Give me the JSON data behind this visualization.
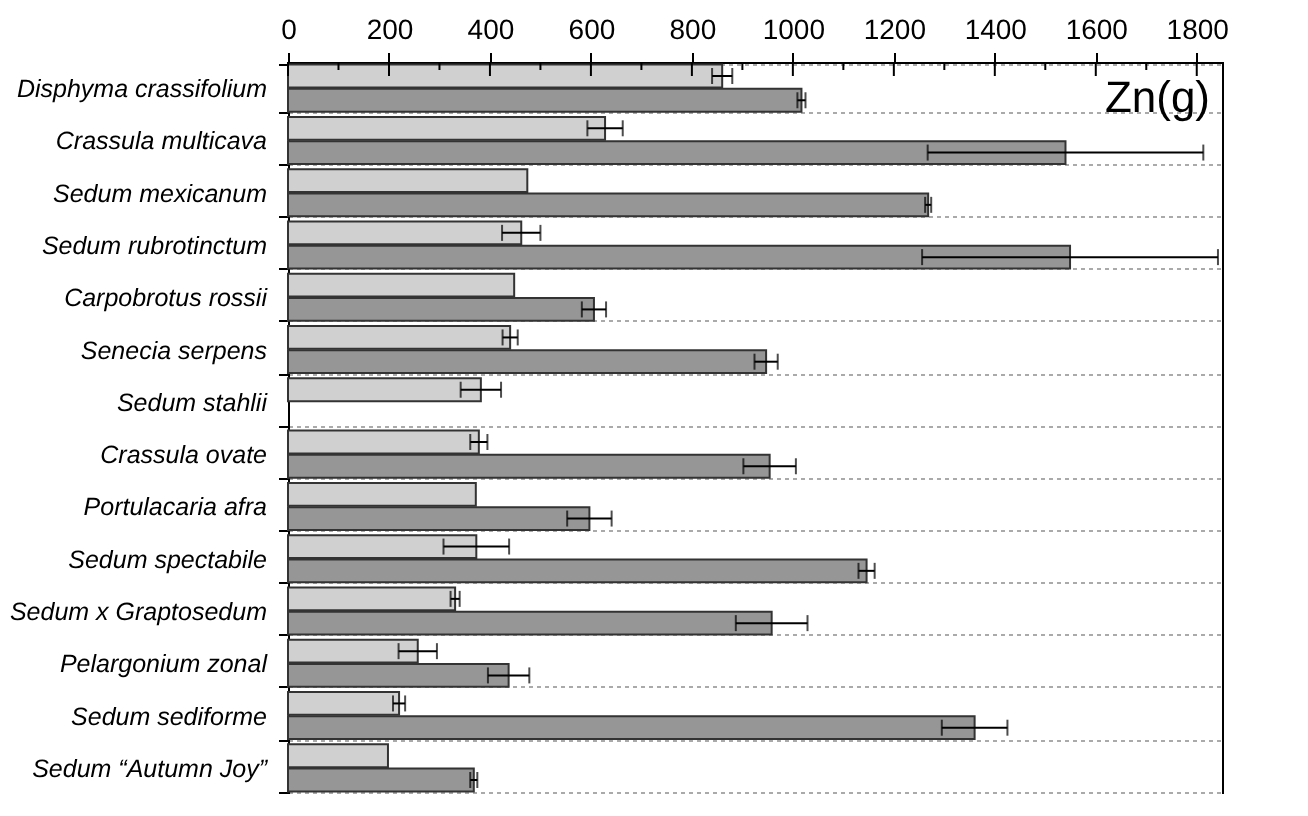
{
  "chart_data": {
    "type": "bar",
    "orientation": "horizontal",
    "categories": [
      "Disphyma crassifolium",
      "Crassula multicava",
      "Sedum mexicanum",
      "Sedum rubrotinctum",
      "Carpobrotus rossii",
      "Senecia serpens",
      "Sedum stahlii",
      "Crassula ovate",
      "Portulacaria afra",
      "Sedum spectabile",
      "Sedum x Graptosedum",
      "Pelargonium zonal",
      "Sedum sediforme",
      "Sedum “Autumn Joy”"
    ],
    "series": [
      {
        "color": "#d0d0d0",
        "values": [
          860,
          628,
          474,
          462,
          448,
          440,
          382,
          378,
          372,
          373,
          331,
          257,
          220,
          198
        ],
        "errors": [
          20,
          35,
          null,
          38,
          null,
          15,
          40,
          17,
          null,
          65,
          9,
          38,
          12,
          null
        ]
      },
      {
        "color": "#969696",
        "values": [
          1017,
          1540,
          1268,
          1549,
          606,
          947,
          null,
          954,
          597,
          1146,
          958,
          437,
          1360,
          368
        ],
        "errors": [
          8,
          273,
          6,
          293,
          24,
          23,
          null,
          52,
          44,
          16,
          71,
          41,
          65,
          7
        ]
      }
    ],
    "xlim": [
      0,
      1850
    ],
    "xticks": [
      0,
      {
        "value": 100,
        "label": null
      },
      200,
      {
        "value": 300,
        "label": null
      },
      400,
      {
        "value": 500,
        "label": null
      },
      600,
      {
        "value": 700,
        "label": null
      },
      800,
      {
        "value": 900,
        "label": null
      },
      1000,
      {
        "value": 1100,
        "label": null
      },
      1200,
      {
        "value": 1300,
        "label": null
      },
      1400,
      {
        "value": 1500,
        "label": null
      },
      1600,
      {
        "value": 1700,
        "label": null
      },
      1800
    ],
    "annotations": [
      "Zn(g)"
    ],
    "grid": "y"
  }
}
